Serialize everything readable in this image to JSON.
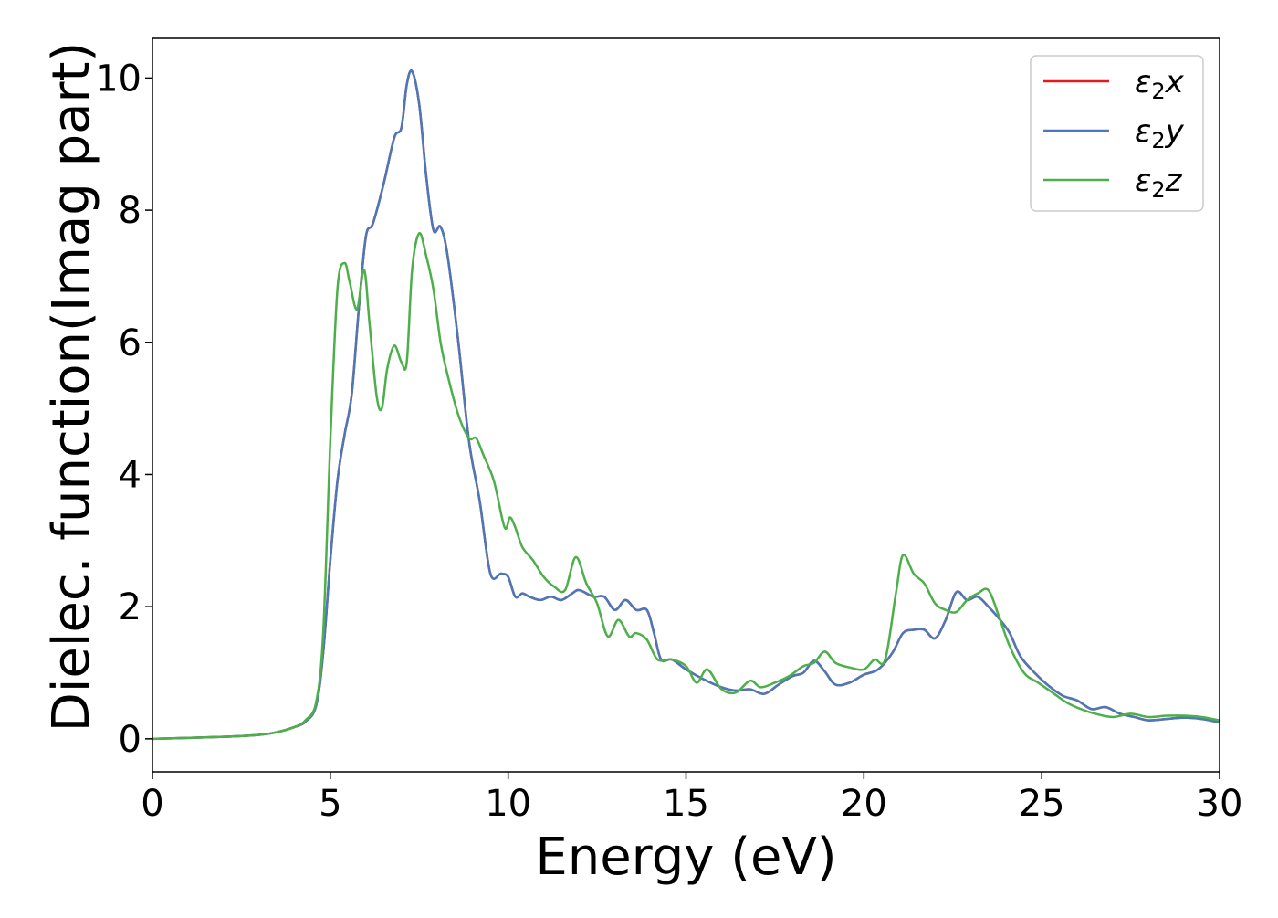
{
  "chart_data": {
    "type": "line",
    "title": "",
    "xlabel": "Energy (eV)",
    "ylabel": "Dielec. function(Imag part)",
    "xlim": [
      0,
      30
    ],
    "ylim": [
      -0.5,
      10.6
    ],
    "xticks": [
      0,
      5,
      10,
      15,
      20,
      25,
      30
    ],
    "yticks": [
      0,
      2,
      4,
      6,
      8,
      10
    ],
    "xtick_labels": [
      "0",
      "5",
      "10",
      "15",
      "20",
      "25",
      "30"
    ],
    "ytick_labels": [
      "0",
      "2",
      "4",
      "6",
      "8",
      "10"
    ],
    "grid": false,
    "legend_position": "top-right",
    "series": [
      {
        "name": "ε2x",
        "legend_base": "ε",
        "legend_sub": "2",
        "legend_tail": "x",
        "color": "#e41a1c",
        "x": [
          0,
          2,
          3,
          3.5,
          4,
          4.3,
          4.6,
          4.8,
          5.0,
          5.2,
          5.4,
          5.6,
          5.8,
          6.0,
          6.2,
          6.5,
          6.8,
          7.0,
          7.15,
          7.3,
          7.5,
          7.7,
          7.9,
          8.1,
          8.3,
          8.6,
          8.9,
          9.2,
          9.5,
          9.8,
          10.0,
          10.2,
          10.4,
          10.6,
          10.9,
          11.2,
          11.5,
          11.8,
          12.0,
          12.4,
          12.7,
          13.0,
          13.3,
          13.6,
          13.9,
          14.1,
          14.3,
          14.6,
          15.0,
          15.5,
          16.0,
          16.4,
          16.8,
          17.2,
          17.6,
          18.0,
          18.3,
          18.6,
          18.9,
          19.2,
          19.6,
          20.0,
          20.4,
          20.8,
          21.1,
          21.4,
          21.7,
          22.0,
          22.3,
          22.6,
          22.9,
          23.2,
          23.5,
          23.8,
          24.1,
          24.4,
          24.8,
          25.2,
          25.6,
          26.0,
          26.4,
          26.8,
          27.2,
          27.6,
          28.0,
          28.5,
          29.0,
          29.5,
          30.0
        ],
        "y": [
          0,
          0.03,
          0.06,
          0.1,
          0.18,
          0.26,
          0.5,
          1.3,
          2.7,
          3.9,
          4.6,
          5.2,
          6.5,
          7.6,
          7.8,
          8.4,
          9.1,
          9.25,
          9.9,
          10.1,
          9.6,
          8.5,
          7.7,
          7.75,
          7.3,
          6.0,
          4.5,
          3.6,
          2.5,
          2.5,
          2.45,
          2.15,
          2.2,
          2.15,
          2.1,
          2.15,
          2.1,
          2.2,
          2.25,
          2.15,
          2.15,
          1.95,
          2.1,
          1.95,
          1.95,
          1.6,
          1.2,
          1.2,
          1.05,
          0.9,
          0.78,
          0.73,
          0.75,
          0.68,
          0.82,
          0.95,
          1.0,
          1.18,
          1.02,
          0.82,
          0.85,
          0.97,
          1.05,
          1.3,
          1.6,
          1.65,
          1.65,
          1.52,
          1.8,
          2.22,
          2.1,
          2.15,
          2.0,
          1.82,
          1.6,
          1.25,
          1.0,
          0.8,
          0.65,
          0.58,
          0.45,
          0.48,
          0.38,
          0.33,
          0.28,
          0.3,
          0.32,
          0.3,
          0.25
        ]
      },
      {
        "name": "ε2y",
        "legend_base": "ε",
        "legend_sub": "2",
        "legend_tail": "y",
        "color": "#4a78b8",
        "x": [
          0,
          2,
          3,
          3.5,
          4,
          4.3,
          4.6,
          4.8,
          5.0,
          5.2,
          5.4,
          5.6,
          5.8,
          6.0,
          6.2,
          6.5,
          6.8,
          7.0,
          7.15,
          7.3,
          7.5,
          7.7,
          7.9,
          8.1,
          8.3,
          8.6,
          8.9,
          9.2,
          9.5,
          9.8,
          10.0,
          10.2,
          10.4,
          10.6,
          10.9,
          11.2,
          11.5,
          11.8,
          12.0,
          12.4,
          12.7,
          13.0,
          13.3,
          13.6,
          13.9,
          14.1,
          14.3,
          14.6,
          15.0,
          15.5,
          16.0,
          16.4,
          16.8,
          17.2,
          17.6,
          18.0,
          18.3,
          18.6,
          18.9,
          19.2,
          19.6,
          20.0,
          20.4,
          20.8,
          21.1,
          21.4,
          21.7,
          22.0,
          22.3,
          22.6,
          22.9,
          23.2,
          23.5,
          23.8,
          24.1,
          24.4,
          24.8,
          25.2,
          25.6,
          26.0,
          26.4,
          26.8,
          27.2,
          27.6,
          28.0,
          28.5,
          29.0,
          29.5,
          30.0
        ],
        "y": [
          0,
          0.03,
          0.06,
          0.1,
          0.18,
          0.26,
          0.5,
          1.3,
          2.7,
          3.9,
          4.6,
          5.2,
          6.5,
          7.6,
          7.8,
          8.4,
          9.1,
          9.25,
          9.9,
          10.1,
          9.6,
          8.5,
          7.7,
          7.75,
          7.3,
          6.0,
          4.5,
          3.6,
          2.5,
          2.5,
          2.45,
          2.15,
          2.2,
          2.15,
          2.1,
          2.15,
          2.1,
          2.2,
          2.25,
          2.15,
          2.15,
          1.95,
          2.1,
          1.95,
          1.95,
          1.6,
          1.2,
          1.2,
          1.05,
          0.9,
          0.78,
          0.73,
          0.75,
          0.68,
          0.82,
          0.95,
          1.0,
          1.18,
          1.02,
          0.82,
          0.85,
          0.97,
          1.05,
          1.3,
          1.6,
          1.65,
          1.65,
          1.52,
          1.8,
          2.22,
          2.1,
          2.15,
          2.0,
          1.82,
          1.6,
          1.25,
          1.0,
          0.8,
          0.65,
          0.58,
          0.45,
          0.48,
          0.38,
          0.33,
          0.28,
          0.3,
          0.32,
          0.3,
          0.25
        ]
      },
      {
        "name": "ε2z",
        "legend_base": "ε",
        "legend_sub": "2",
        "legend_tail": "z",
        "color": "#4daf4a",
        "x": [
          0,
          2,
          3,
          3.5,
          4,
          4.3,
          4.6,
          4.8,
          5.0,
          5.2,
          5.4,
          5.55,
          5.75,
          5.95,
          6.1,
          6.3,
          6.45,
          6.6,
          6.8,
          7.0,
          7.15,
          7.3,
          7.5,
          7.7,
          7.9,
          8.1,
          8.3,
          8.6,
          8.9,
          9.1,
          9.3,
          9.6,
          9.9,
          10.05,
          10.2,
          10.4,
          10.7,
          11.0,
          11.3,
          11.6,
          11.9,
          12.2,
          12.5,
          12.8,
          13.1,
          13.4,
          13.6,
          13.9,
          14.2,
          14.6,
          15.0,
          15.3,
          15.6,
          16.0,
          16.4,
          16.8,
          17.1,
          17.5,
          17.9,
          18.3,
          18.6,
          18.9,
          19.2,
          19.6,
          20.0,
          20.3,
          20.6,
          20.9,
          21.1,
          21.4,
          21.7,
          22.0,
          22.3,
          22.6,
          22.9,
          23.2,
          23.5,
          23.8,
          24.1,
          24.5,
          24.9,
          25.3,
          25.7,
          26.1,
          26.5,
          27.0,
          27.5,
          28.0,
          28.5,
          29.0,
          29.5,
          30.0
        ],
        "y": [
          0,
          0.03,
          0.06,
          0.1,
          0.18,
          0.28,
          0.55,
          1.6,
          4.5,
          6.8,
          7.2,
          6.9,
          6.5,
          7.1,
          6.3,
          5.2,
          5.0,
          5.6,
          5.95,
          5.7,
          5.7,
          7.1,
          7.65,
          7.3,
          6.8,
          6.0,
          5.5,
          4.9,
          4.55,
          4.55,
          4.3,
          3.9,
          3.2,
          3.35,
          3.2,
          2.9,
          2.7,
          2.45,
          2.3,
          2.25,
          2.75,
          2.35,
          2.05,
          1.55,
          1.8,
          1.55,
          1.6,
          1.5,
          1.2,
          1.2,
          1.1,
          0.85,
          1.05,
          0.75,
          0.7,
          0.88,
          0.78,
          0.85,
          0.95,
          1.1,
          1.15,
          1.32,
          1.15,
          1.08,
          1.05,
          1.2,
          1.2,
          2.2,
          2.78,
          2.5,
          2.35,
          2.05,
          1.95,
          1.92,
          2.1,
          2.2,
          2.25,
          1.85,
          1.4,
          1.0,
          0.85,
          0.7,
          0.55,
          0.45,
          0.38,
          0.33,
          0.38,
          0.33,
          0.35,
          0.35,
          0.33,
          0.28
        ]
      }
    ]
  }
}
